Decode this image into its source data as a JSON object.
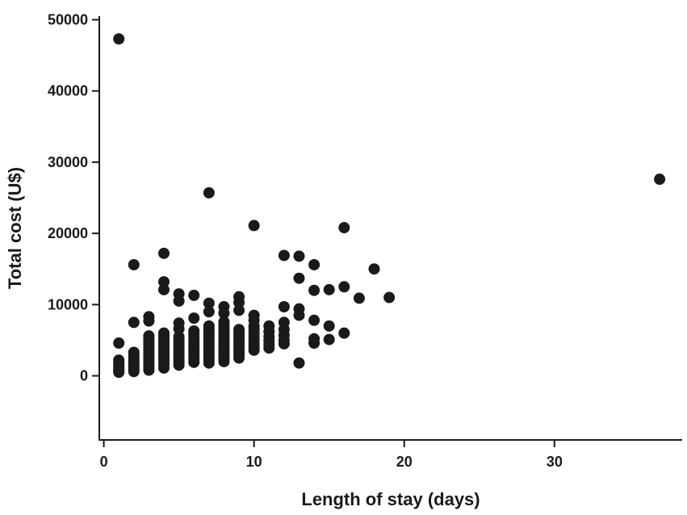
{
  "chart_data": {
    "type": "scatter",
    "title": "",
    "xlabel": "Length of stay (days)",
    "ylabel": "Total cost (U$)",
    "xlim": [
      -0.3,
      38.5
    ],
    "ylim": [
      -9000,
      50500
    ],
    "x_ticks": [
      0,
      10,
      20,
      30
    ],
    "x_tick_labels": [
      "0",
      "10",
      "20",
      "30"
    ],
    "y_ticks": [
      0,
      10000,
      20000,
      30000,
      40000,
      50000
    ],
    "y_tick_labels": [
      "0",
      "10000",
      "20000",
      "30000",
      "40000",
      "50000"
    ],
    "grid": false,
    "legend": "none",
    "marker_color": "#1a1a1a",
    "series": [
      {
        "points": [
          [
            1,
            47300
          ],
          [
            1,
            4600
          ],
          [
            1,
            2200
          ],
          [
            1,
            1900
          ],
          [
            1,
            1500
          ],
          [
            1,
            1200
          ],
          [
            1,
            900
          ],
          [
            1,
            700
          ],
          [
            1,
            500
          ],
          [
            2,
            15600
          ],
          [
            2,
            7500
          ],
          [
            2,
            3300
          ],
          [
            2,
            2900
          ],
          [
            2,
            2500
          ],
          [
            2,
            2100
          ],
          [
            2,
            1800
          ],
          [
            2,
            1500
          ],
          [
            2,
            1200
          ],
          [
            2,
            900
          ],
          [
            2,
            600
          ],
          [
            3,
            8300
          ],
          [
            3,
            7700
          ],
          [
            3,
            5600
          ],
          [
            3,
            5200
          ],
          [
            3,
            4800
          ],
          [
            3,
            4400
          ],
          [
            3,
            4000
          ],
          [
            3,
            3600
          ],
          [
            3,
            3200
          ],
          [
            3,
            2800
          ],
          [
            3,
            2400
          ],
          [
            3,
            2000
          ],
          [
            3,
            1600
          ],
          [
            3,
            1200
          ],
          [
            3,
            800
          ],
          [
            4,
            17200
          ],
          [
            4,
            13200
          ],
          [
            4,
            12100
          ],
          [
            4,
            6000
          ],
          [
            4,
            5600
          ],
          [
            4,
            5200
          ],
          [
            4,
            4800
          ],
          [
            4,
            4400
          ],
          [
            4,
            4000
          ],
          [
            4,
            3600
          ],
          [
            4,
            3200
          ],
          [
            4,
            2800
          ],
          [
            4,
            2400
          ],
          [
            4,
            2000
          ],
          [
            4,
            1600
          ],
          [
            4,
            1100
          ],
          [
            5,
            11500
          ],
          [
            5,
            10500
          ],
          [
            5,
            7400
          ],
          [
            5,
            6600
          ],
          [
            5,
            5500
          ],
          [
            5,
            5100
          ],
          [
            5,
            4700
          ],
          [
            5,
            4300
          ],
          [
            5,
            3900
          ],
          [
            5,
            3500
          ],
          [
            5,
            3100
          ],
          [
            5,
            2700
          ],
          [
            5,
            2300
          ],
          [
            5,
            1900
          ],
          [
            5,
            1500
          ],
          [
            6,
            11300
          ],
          [
            6,
            8100
          ],
          [
            6,
            6300
          ],
          [
            6,
            5900
          ],
          [
            6,
            5500
          ],
          [
            6,
            5100
          ],
          [
            6,
            4700
          ],
          [
            6,
            4300
          ],
          [
            6,
            3900
          ],
          [
            6,
            3500
          ],
          [
            6,
            3100
          ],
          [
            6,
            2700
          ],
          [
            6,
            2300
          ],
          [
            6,
            1900
          ],
          [
            7,
            25700
          ],
          [
            7,
            10200
          ],
          [
            7,
            9000
          ],
          [
            7,
            7000
          ],
          [
            7,
            6600
          ],
          [
            7,
            6200
          ],
          [
            7,
            5800
          ],
          [
            7,
            5400
          ],
          [
            7,
            5000
          ],
          [
            7,
            4600
          ],
          [
            7,
            4200
          ],
          [
            7,
            3800
          ],
          [
            7,
            3400
          ],
          [
            7,
            3000
          ],
          [
            7,
            2600
          ],
          [
            7,
            2200
          ],
          [
            7,
            1800
          ],
          [
            8,
            9700
          ],
          [
            8,
            8800
          ],
          [
            8,
            7600
          ],
          [
            8,
            7200
          ],
          [
            8,
            6800
          ],
          [
            8,
            6400
          ],
          [
            8,
            6000
          ],
          [
            8,
            5600
          ],
          [
            8,
            5200
          ],
          [
            8,
            4800
          ],
          [
            8,
            4400
          ],
          [
            8,
            4000
          ],
          [
            8,
            3600
          ],
          [
            8,
            3200
          ],
          [
            8,
            2800
          ],
          [
            8,
            2400
          ],
          [
            8,
            2000
          ],
          [
            9,
            11100
          ],
          [
            9,
            10300
          ],
          [
            9,
            9200
          ],
          [
            9,
            6500
          ],
          [
            9,
            6100
          ],
          [
            9,
            5700
          ],
          [
            9,
            5300
          ],
          [
            9,
            4900
          ],
          [
            9,
            4500
          ],
          [
            9,
            4100
          ],
          [
            9,
            3700
          ],
          [
            9,
            3300
          ],
          [
            9,
            2900
          ],
          [
            9,
            2500
          ],
          [
            10,
            21100
          ],
          [
            10,
            8500
          ],
          [
            10,
            7800
          ],
          [
            10,
            7000
          ],
          [
            10,
            6500
          ],
          [
            10,
            6000
          ],
          [
            10,
            5500
          ],
          [
            10,
            5000
          ],
          [
            10,
            4500
          ],
          [
            10,
            4000
          ],
          [
            10,
            3600
          ],
          [
            11,
            7000
          ],
          [
            11,
            6200
          ],
          [
            11,
            5500
          ],
          [
            11,
            4900
          ],
          [
            11,
            4400
          ],
          [
            11,
            3900
          ],
          [
            12,
            16900
          ],
          [
            12,
            9700
          ],
          [
            12,
            7500
          ],
          [
            12,
            6500
          ],
          [
            12,
            5700
          ],
          [
            12,
            5000
          ],
          [
            12,
            4500
          ],
          [
            13,
            16800
          ],
          [
            13,
            13700
          ],
          [
            13,
            9400
          ],
          [
            13,
            8500
          ],
          [
            13,
            1800
          ],
          [
            14,
            15600
          ],
          [
            14,
            12000
          ],
          [
            14,
            7800
          ],
          [
            14,
            5200
          ],
          [
            14,
            4600
          ],
          [
            15,
            12100
          ],
          [
            15,
            7000
          ],
          [
            15,
            5100
          ],
          [
            16,
            20800
          ],
          [
            16,
            12500
          ],
          [
            16,
            6000
          ],
          [
            17,
            10900
          ],
          [
            18,
            15000
          ],
          [
            19,
            11000
          ],
          [
            37,
            27600
          ]
        ]
      }
    ]
  }
}
